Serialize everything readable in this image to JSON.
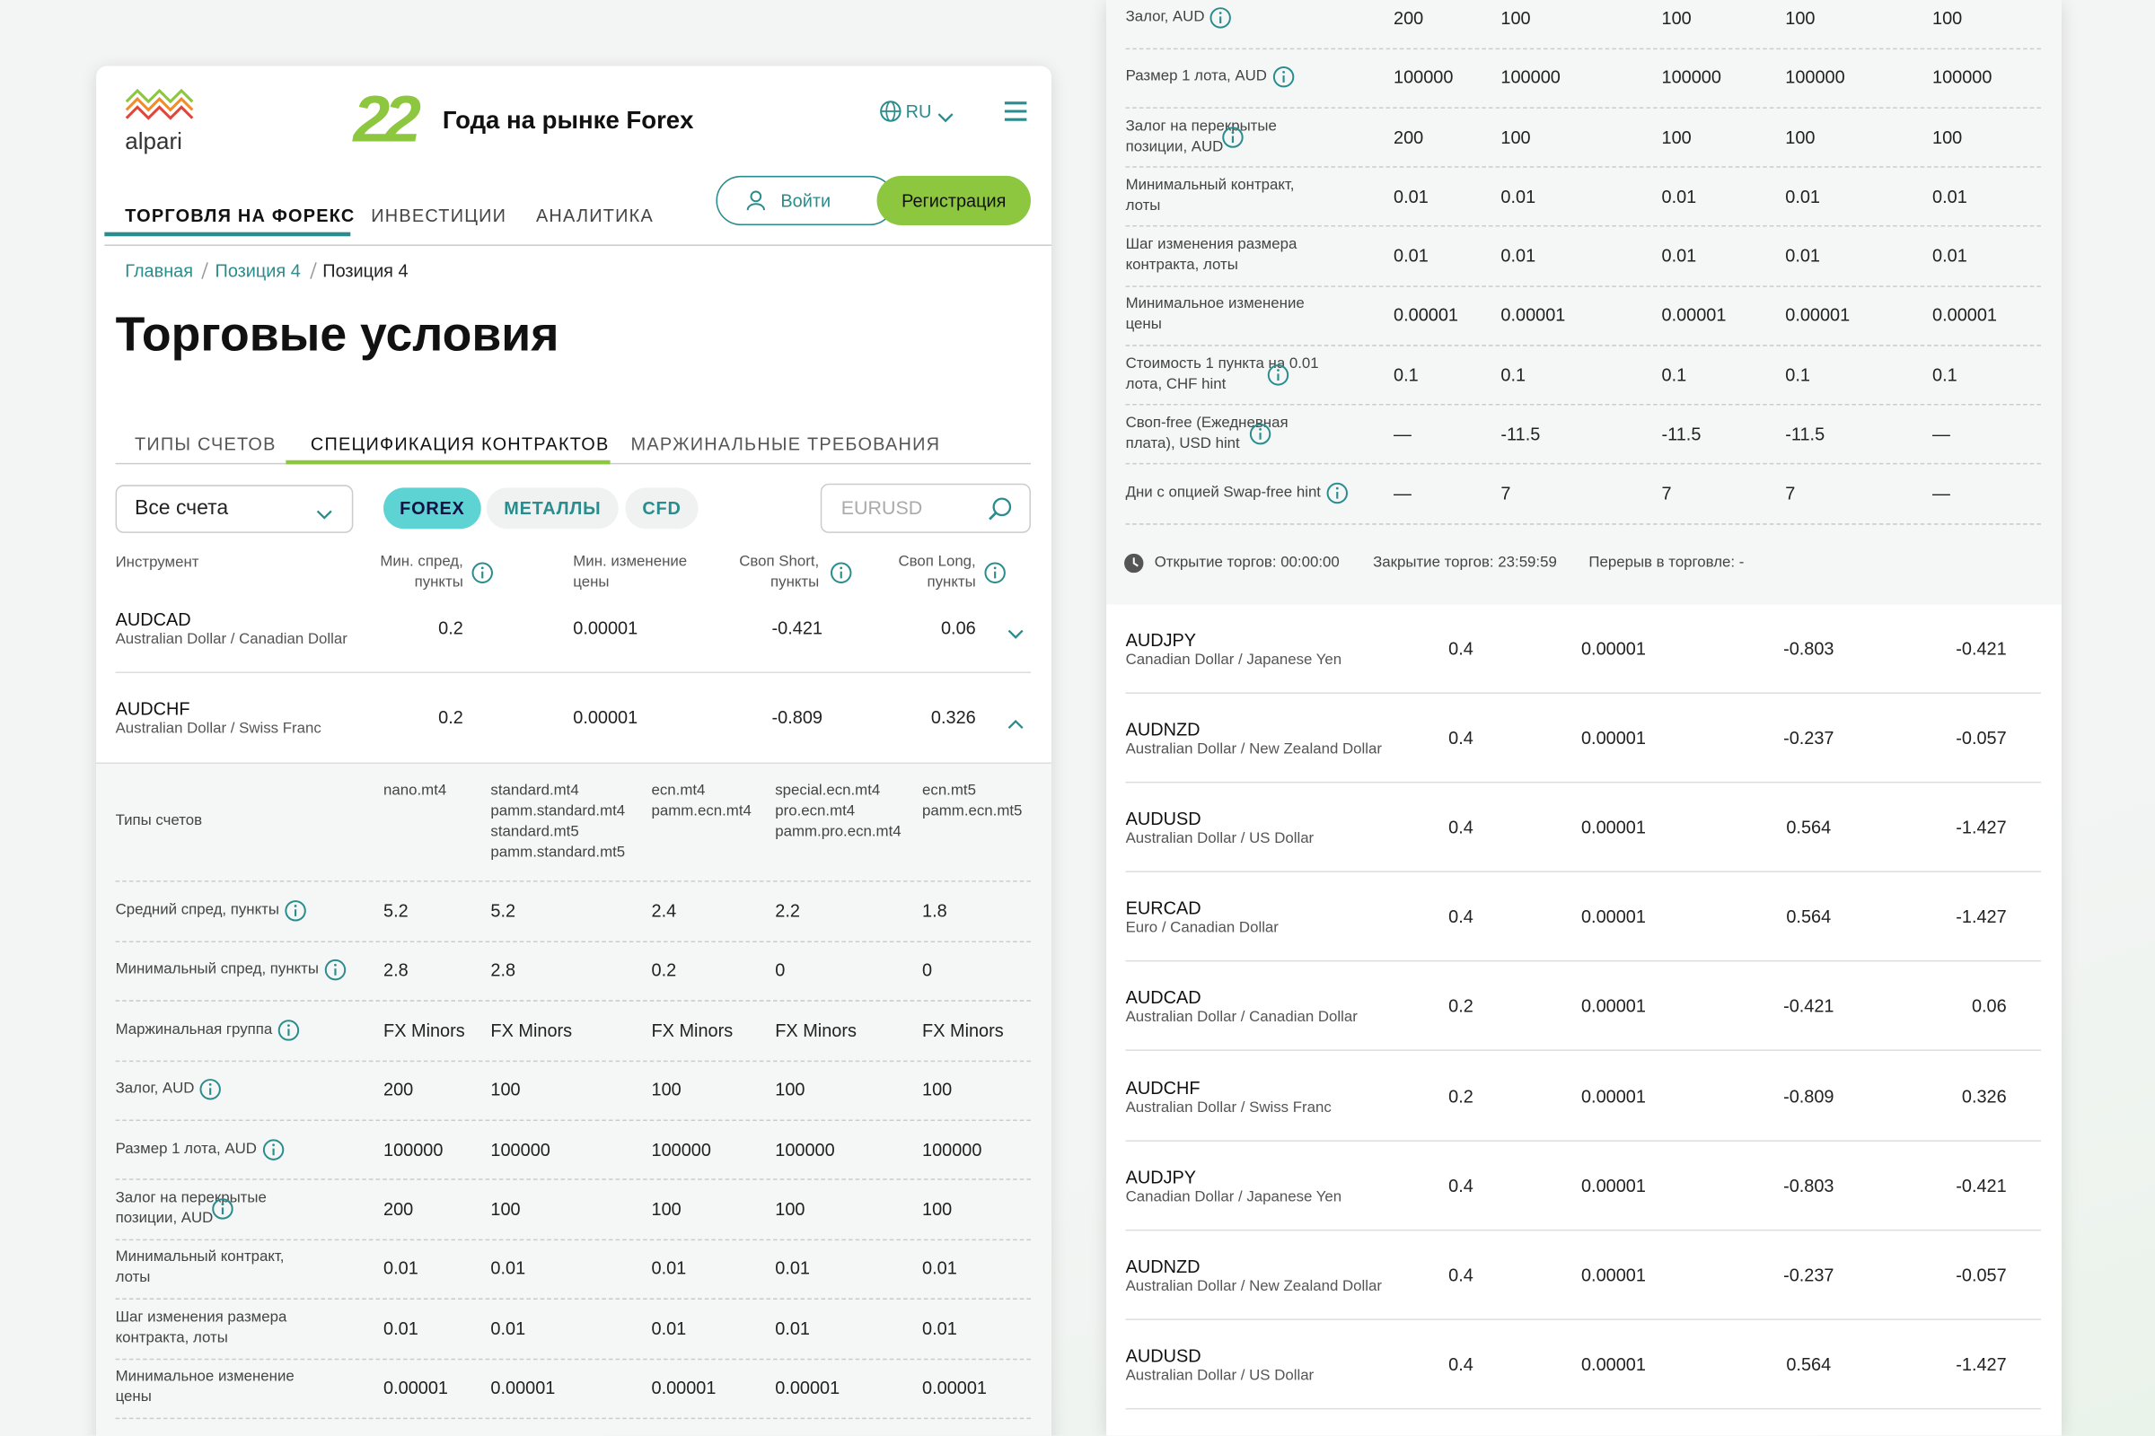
{
  "header": {
    "logo": "alpari",
    "anniversary": "22",
    "tagline": "Года на рынке Forex",
    "language": "RU",
    "nav": [
      "ТОРГОВЛЯ НА ФОРЕКС",
      "ИНВЕСТИЦИИ",
      "АНАЛИТИКА"
    ],
    "login": "Войти",
    "register": "Регистрация"
  },
  "breadcrumbs": [
    "Главная",
    "Позиция 4",
    "Позиция 4"
  ],
  "title": "Торговые условия",
  "tabs": [
    "ТИПЫ СЧЕТОВ",
    "СПЕЦИФИКАЦИЯ КОНТРАКТОВ",
    "МАРЖИНАЛЬНЫЕ ТРЕБОВАНИЯ"
  ],
  "filters": {
    "account_select": "Все счета",
    "chips": [
      "FOREX",
      "МЕТАЛЛЫ",
      "CFD"
    ],
    "search_placeholder": "EURUSD"
  },
  "table": {
    "columns": [
      "Инструмент",
      "Мин. спред, пункты",
      "Мин. изменение цены",
      "Своп Short, пункты",
      "Своп Long, пункты"
    ],
    "rows": [
      [
        "AUDCAD",
        "Australian Dollar / Canadian Dollar",
        "0.2",
        "0.00001",
        "-0.421",
        "0.06"
      ],
      [
        "AUDCHF",
        "Australian Dollar / Swiss Franc",
        "0.2",
        "0.00001",
        "-0.809",
        "0.326"
      ]
    ]
  },
  "detail": {
    "account_types_label": "Типы счетов",
    "account_types": [
      [
        "nano.mt4"
      ],
      [
        "standard.mt4",
        "pamm.standard.mt4",
        "standard.mt5",
        "pamm.standard.mt5"
      ],
      [
        "ecn.mt4",
        "pamm.ecn.mt4"
      ],
      [
        "special.ecn.mt4",
        "pro.ecn.mt4",
        "pamm.pro.ecn.mt4"
      ],
      [
        "ecn.mt5",
        "pamm.ecn.mt5"
      ]
    ],
    "rows": [
      {
        "label": "Средний спред, пункты",
        "info": true,
        "values": [
          "5.2",
          "5.2",
          "2.4",
          "2.2",
          "1.8"
        ]
      },
      {
        "label": "Минимальный спред, пункты",
        "info": true,
        "values": [
          "2.8",
          "2.8",
          "0.2",
          "0",
          "0"
        ]
      },
      {
        "label": "Маржинальная группа",
        "info": true,
        "values": [
          "FX Minors",
          "FX Minors",
          "FX Minors",
          "FX Minors",
          "FX Minors"
        ]
      },
      {
        "label": "Залог, AUD",
        "info": true,
        "values": [
          "200",
          "100",
          "100",
          "100",
          "100"
        ]
      },
      {
        "label": "Размер 1 лота, AUD",
        "info": true,
        "values": [
          "100000",
          "100000",
          "100000",
          "100000",
          "100000"
        ]
      },
      {
        "label": "Залог на перекрытые позиции, AUD",
        "info": true,
        "values": [
          "200",
          "100",
          "100",
          "100",
          "100"
        ]
      },
      {
        "label": "Минимальный контракт, лоты",
        "info": false,
        "values": [
          "0.01",
          "0.01",
          "0.01",
          "0.01",
          "0.01"
        ]
      },
      {
        "label": "Шаг изменения размера контракта, лоты",
        "info": false,
        "values": [
          "0.01",
          "0.01",
          "0.01",
          "0.01",
          "0.01"
        ]
      },
      {
        "label": "Минимальное изменение цены",
        "info": false,
        "values": [
          "0.00001",
          "0.00001",
          "0.00001",
          "0.00001",
          "0.00001"
        ]
      }
    ]
  },
  "right_panel": {
    "detail_rows": [
      {
        "label": "Залог, AUD",
        "info": true,
        "values": [
          "200",
          "100",
          "100",
          "100",
          "100"
        ]
      },
      {
        "label": "Размер 1 лота, AUD",
        "info": true,
        "values": [
          "100000",
          "100000",
          "100000",
          "100000",
          "100000"
        ]
      },
      {
        "label": "Залог на перекрытые позиции, AUD",
        "info": true,
        "values": [
          "200",
          "100",
          "100",
          "100",
          "100"
        ]
      },
      {
        "label": "Минимальный контракт, лоты",
        "info": false,
        "values": [
          "0.01",
          "0.01",
          "0.01",
          "0.01",
          "0.01"
        ]
      },
      {
        "label": "Шаг изменения размера контракта, лоты",
        "info": false,
        "values": [
          "0.01",
          "0.01",
          "0.01",
          "0.01",
          "0.01"
        ]
      },
      {
        "label": "Минимальное изменение цены",
        "info": false,
        "values": [
          "0.00001",
          "0.00001",
          "0.00001",
          "0.00001",
          "0.00001"
        ]
      },
      {
        "label": "Стоимость 1 пункта на 0.01 лота, CHF hint",
        "info": true,
        "values": [
          "0.1",
          "0.1",
          "0.1",
          "0.1",
          "0.1"
        ]
      },
      {
        "label": "Своп-free (Ежедневная плата), USD hint",
        "info": true,
        "values": [
          "—",
          "-11.5",
          "-11.5",
          "-11.5",
          "—"
        ]
      },
      {
        "label": "Дни с опцией Swap-free hint",
        "info": true,
        "values": [
          "—",
          "7",
          "7",
          "7",
          "—"
        ]
      }
    ],
    "hours": [
      "Открытие торгов: 00:00:00",
      "Закрытие торгов: 23:59:59",
      "Перерыв в торговле: -"
    ],
    "rows": [
      [
        "AUDJPY",
        "Canadian Dollar / Japanese Yen",
        "0.4",
        "0.00001",
        "-0.803",
        "-0.421"
      ],
      [
        "AUDNZD",
        "Australian Dollar / New Zealand Dollar",
        "0.4",
        "0.00001",
        "-0.237",
        "-0.057"
      ],
      [
        "AUDUSD",
        "Australian Dollar / US Dollar",
        "0.4",
        "0.00001",
        "0.564",
        "-1.427"
      ],
      [
        "EURCAD",
        "Euro / Canadian Dollar",
        "0.4",
        "0.00001",
        "0.564",
        "-1.427"
      ],
      [
        "AUDCAD",
        "Australian Dollar / Canadian Dollar",
        "0.2",
        "0.00001",
        "-0.421",
        "0.06"
      ],
      [
        "AUDCHF",
        "Australian Dollar / Swiss Franc",
        "0.2",
        "0.00001",
        "-0.809",
        "0.326"
      ],
      [
        "AUDJPY",
        "Canadian Dollar / Japanese Yen",
        "0.4",
        "0.00001",
        "-0.803",
        "-0.421"
      ],
      [
        "AUDNZD",
        "Australian Dollar / New Zealand Dollar",
        "0.4",
        "0.00001",
        "-0.237",
        "-0.057"
      ],
      [
        "AUDUSD",
        "Australian Dollar / US Dollar",
        "0.4",
        "0.00001",
        "0.564",
        "-1.427"
      ]
    ]
  }
}
